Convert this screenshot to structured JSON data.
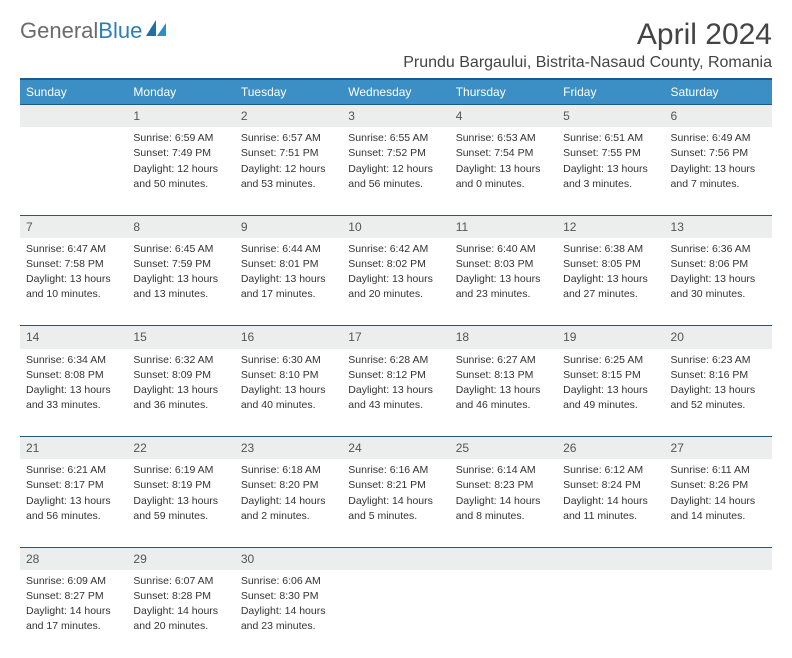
{
  "logo": {
    "text_gray": "General",
    "text_blue": "Blue"
  },
  "header": {
    "month_title": "April 2024",
    "location": "Prundu Bargaului, Bistrita-Nasaud County, Romania"
  },
  "colors": {
    "header_bg": "#3b8fc4",
    "border": "#1d5a8a",
    "daynum_bg": "#eceded",
    "text": "#333333"
  },
  "weekdays": [
    "Sunday",
    "Monday",
    "Tuesday",
    "Wednesday",
    "Thursday",
    "Friday",
    "Saturday"
  ],
  "weeks": [
    {
      "nums": [
        "",
        "1",
        "2",
        "3",
        "4",
        "5",
        "6"
      ],
      "cells": [
        null,
        {
          "sunrise": "Sunrise: 6:59 AM",
          "sunset": "Sunset: 7:49 PM",
          "day1": "Daylight: 12 hours",
          "day2": "and 50 minutes."
        },
        {
          "sunrise": "Sunrise: 6:57 AM",
          "sunset": "Sunset: 7:51 PM",
          "day1": "Daylight: 12 hours",
          "day2": "and 53 minutes."
        },
        {
          "sunrise": "Sunrise: 6:55 AM",
          "sunset": "Sunset: 7:52 PM",
          "day1": "Daylight: 12 hours",
          "day2": "and 56 minutes."
        },
        {
          "sunrise": "Sunrise: 6:53 AM",
          "sunset": "Sunset: 7:54 PM",
          "day1": "Daylight: 13 hours",
          "day2": "and 0 minutes."
        },
        {
          "sunrise": "Sunrise: 6:51 AM",
          "sunset": "Sunset: 7:55 PM",
          "day1": "Daylight: 13 hours",
          "day2": "and 3 minutes."
        },
        {
          "sunrise": "Sunrise: 6:49 AM",
          "sunset": "Sunset: 7:56 PM",
          "day1": "Daylight: 13 hours",
          "day2": "and 7 minutes."
        }
      ]
    },
    {
      "nums": [
        "7",
        "8",
        "9",
        "10",
        "11",
        "12",
        "13"
      ],
      "cells": [
        {
          "sunrise": "Sunrise: 6:47 AM",
          "sunset": "Sunset: 7:58 PM",
          "day1": "Daylight: 13 hours",
          "day2": "and 10 minutes."
        },
        {
          "sunrise": "Sunrise: 6:45 AM",
          "sunset": "Sunset: 7:59 PM",
          "day1": "Daylight: 13 hours",
          "day2": "and 13 minutes."
        },
        {
          "sunrise": "Sunrise: 6:44 AM",
          "sunset": "Sunset: 8:01 PM",
          "day1": "Daylight: 13 hours",
          "day2": "and 17 minutes."
        },
        {
          "sunrise": "Sunrise: 6:42 AM",
          "sunset": "Sunset: 8:02 PM",
          "day1": "Daylight: 13 hours",
          "day2": "and 20 minutes."
        },
        {
          "sunrise": "Sunrise: 6:40 AM",
          "sunset": "Sunset: 8:03 PM",
          "day1": "Daylight: 13 hours",
          "day2": "and 23 minutes."
        },
        {
          "sunrise": "Sunrise: 6:38 AM",
          "sunset": "Sunset: 8:05 PM",
          "day1": "Daylight: 13 hours",
          "day2": "and 27 minutes."
        },
        {
          "sunrise": "Sunrise: 6:36 AM",
          "sunset": "Sunset: 8:06 PM",
          "day1": "Daylight: 13 hours",
          "day2": "and 30 minutes."
        }
      ]
    },
    {
      "nums": [
        "14",
        "15",
        "16",
        "17",
        "18",
        "19",
        "20"
      ],
      "cells": [
        {
          "sunrise": "Sunrise: 6:34 AM",
          "sunset": "Sunset: 8:08 PM",
          "day1": "Daylight: 13 hours",
          "day2": "and 33 minutes."
        },
        {
          "sunrise": "Sunrise: 6:32 AM",
          "sunset": "Sunset: 8:09 PM",
          "day1": "Daylight: 13 hours",
          "day2": "and 36 minutes."
        },
        {
          "sunrise": "Sunrise: 6:30 AM",
          "sunset": "Sunset: 8:10 PM",
          "day1": "Daylight: 13 hours",
          "day2": "and 40 minutes."
        },
        {
          "sunrise": "Sunrise: 6:28 AM",
          "sunset": "Sunset: 8:12 PM",
          "day1": "Daylight: 13 hours",
          "day2": "and 43 minutes."
        },
        {
          "sunrise": "Sunrise: 6:27 AM",
          "sunset": "Sunset: 8:13 PM",
          "day1": "Daylight: 13 hours",
          "day2": "and 46 minutes."
        },
        {
          "sunrise": "Sunrise: 6:25 AM",
          "sunset": "Sunset: 8:15 PM",
          "day1": "Daylight: 13 hours",
          "day2": "and 49 minutes."
        },
        {
          "sunrise": "Sunrise: 6:23 AM",
          "sunset": "Sunset: 8:16 PM",
          "day1": "Daylight: 13 hours",
          "day2": "and 52 minutes."
        }
      ]
    },
    {
      "nums": [
        "21",
        "22",
        "23",
        "24",
        "25",
        "26",
        "27"
      ],
      "cells": [
        {
          "sunrise": "Sunrise: 6:21 AM",
          "sunset": "Sunset: 8:17 PM",
          "day1": "Daylight: 13 hours",
          "day2": "and 56 minutes."
        },
        {
          "sunrise": "Sunrise: 6:19 AM",
          "sunset": "Sunset: 8:19 PM",
          "day1": "Daylight: 13 hours",
          "day2": "and 59 minutes."
        },
        {
          "sunrise": "Sunrise: 6:18 AM",
          "sunset": "Sunset: 8:20 PM",
          "day1": "Daylight: 14 hours",
          "day2": "and 2 minutes."
        },
        {
          "sunrise": "Sunrise: 6:16 AM",
          "sunset": "Sunset: 8:21 PM",
          "day1": "Daylight: 14 hours",
          "day2": "and 5 minutes."
        },
        {
          "sunrise": "Sunrise: 6:14 AM",
          "sunset": "Sunset: 8:23 PM",
          "day1": "Daylight: 14 hours",
          "day2": "and 8 minutes."
        },
        {
          "sunrise": "Sunrise: 6:12 AM",
          "sunset": "Sunset: 8:24 PM",
          "day1": "Daylight: 14 hours",
          "day2": "and 11 minutes."
        },
        {
          "sunrise": "Sunrise: 6:11 AM",
          "sunset": "Sunset: 8:26 PM",
          "day1": "Daylight: 14 hours",
          "day2": "and 14 minutes."
        }
      ]
    },
    {
      "nums": [
        "28",
        "29",
        "30",
        "",
        "",
        "",
        ""
      ],
      "cells": [
        {
          "sunrise": "Sunrise: 6:09 AM",
          "sunset": "Sunset: 8:27 PM",
          "day1": "Daylight: 14 hours",
          "day2": "and 17 minutes."
        },
        {
          "sunrise": "Sunrise: 6:07 AM",
          "sunset": "Sunset: 8:28 PM",
          "day1": "Daylight: 14 hours",
          "day2": "and 20 minutes."
        },
        {
          "sunrise": "Sunrise: 6:06 AM",
          "sunset": "Sunset: 8:30 PM",
          "day1": "Daylight: 14 hours",
          "day2": "and 23 minutes."
        },
        null,
        null,
        null,
        null
      ]
    }
  ]
}
